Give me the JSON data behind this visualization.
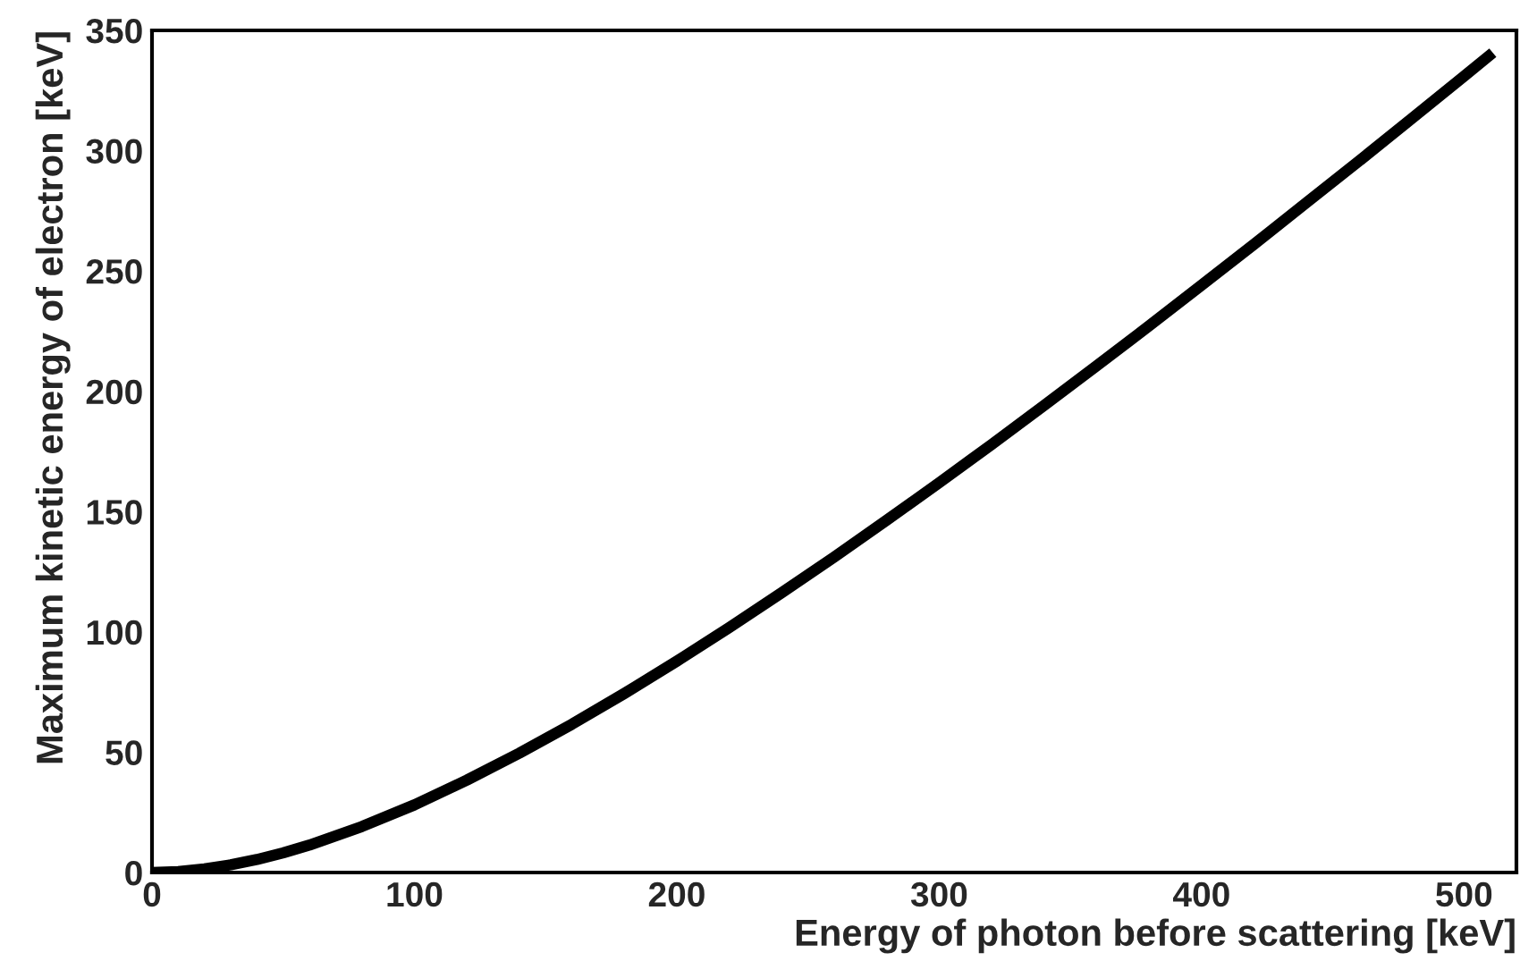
{
  "chart_data": {
    "type": "line",
    "xlabel": "Energy of photon before scattering [keV]",
    "ylabel": "Maximum kinetic energy of electron [keV]",
    "x": [
      0,
      10,
      20,
      30,
      40,
      50,
      60,
      80,
      100,
      120,
      140,
      160,
      180,
      200,
      220,
      240,
      260,
      280,
      300,
      320,
      340,
      360,
      380,
      400,
      420,
      440,
      460,
      480,
      500,
      511
    ],
    "series": [
      {
        "color": "#000000",
        "values": [
          0,
          0.4,
          1.5,
          3.2,
          5.4,
          8.2,
          11.4,
          19.1,
          28.1,
          38.4,
          49.6,
          61.6,
          74.4,
          87.8,
          101.8,
          116.3,
          131.1,
          146.4,
          162.0,
          177.9,
          194.1,
          210.6,
          227.2,
          244.1,
          261.1,
          278.4,
          295.7,
          313.3,
          330.9,
          340.7
        ]
      }
    ],
    "xlim": [
      0,
      520
    ],
    "ylim": [
      0,
      350
    ],
    "xticks": [
      0,
      100,
      200,
      300,
      400,
      500
    ],
    "yticks": [
      0,
      50,
      100,
      150,
      200,
      250,
      300,
      350
    ],
    "grid": false,
    "legend": false,
    "marker": "none",
    "line_style": "solid"
  }
}
